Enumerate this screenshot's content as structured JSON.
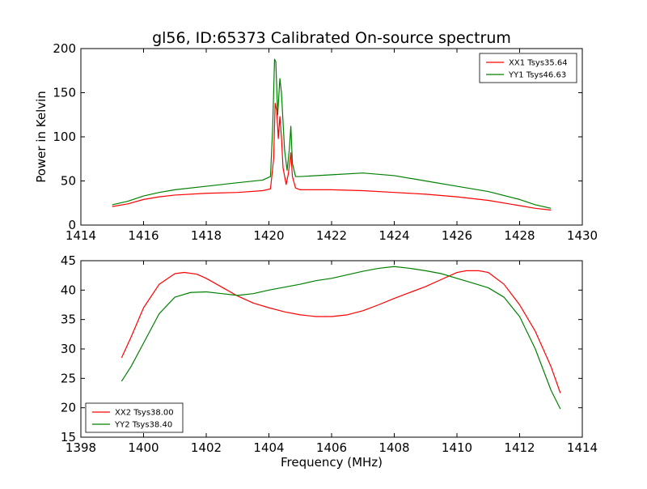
{
  "chart_data": [
    {
      "type": "line",
      "title": "gl56, ID:65373 Calibrated On-source spectrum",
      "xlabel": "",
      "ylabel": "Power in Kelvin",
      "xlim": [
        1414,
        1430
      ],
      "ylim": [
        0,
        200
      ],
      "x_ticks": [
        "1414",
        "1416",
        "1418",
        "1420",
        "1422",
        "1424",
        "1426",
        "1428",
        "1430"
      ],
      "y_ticks": [
        "0",
        "50",
        "100",
        "150",
        "200"
      ],
      "legend_position": "top-right",
      "series": [
        {
          "name": "XX1 Tsys35.64",
          "color": "#ff0000",
          "points": [
            [
              1415.0,
              21
            ],
            [
              1415.5,
              24
            ],
            [
              1416.0,
              29
            ],
            [
              1416.5,
              32
            ],
            [
              1417.0,
              34
            ],
            [
              1418.0,
              36
            ],
            [
              1419.0,
              37
            ],
            [
              1419.8,
              39
            ],
            [
              1420.05,
              41
            ],
            [
              1420.15,
              75
            ],
            [
              1420.2,
              138
            ],
            [
              1420.25,
              130
            ],
            [
              1420.3,
              98
            ],
            [
              1420.35,
              123
            ],
            [
              1420.4,
              100
            ],
            [
              1420.45,
              65
            ],
            [
              1420.55,
              46
            ],
            [
              1420.62,
              58
            ],
            [
              1420.7,
              82
            ],
            [
              1420.75,
              55
            ],
            [
              1420.85,
              42
            ],
            [
              1421.0,
              40
            ],
            [
              1422.0,
              40
            ],
            [
              1423.0,
              39
            ],
            [
              1424.0,
              37
            ],
            [
              1425.0,
              35
            ],
            [
              1426.0,
              32
            ],
            [
              1427.0,
              28
            ],
            [
              1428.0,
              22
            ],
            [
              1428.5,
              19
            ],
            [
              1429.0,
              17
            ]
          ]
        },
        {
          "name": "YY1 Tsys46.63",
          "color": "#008000",
          "points": [
            [
              1415.0,
              23
            ],
            [
              1415.5,
              27
            ],
            [
              1416.0,
              33
            ],
            [
              1416.5,
              37
            ],
            [
              1417.0,
              40
            ],
            [
              1418.0,
              44
            ],
            [
              1419.0,
              48
            ],
            [
              1419.8,
              51
            ],
            [
              1420.05,
              55
            ],
            [
              1420.12,
              110
            ],
            [
              1420.18,
              188
            ],
            [
              1420.22,
              185
            ],
            [
              1420.28,
              125
            ],
            [
              1420.35,
              166
            ],
            [
              1420.4,
              150
            ],
            [
              1420.5,
              85
            ],
            [
              1420.58,
              62
            ],
            [
              1420.65,
              85
            ],
            [
              1420.7,
              112
            ],
            [
              1420.75,
              70
            ],
            [
              1420.85,
              55
            ],
            [
              1421.0,
              55
            ],
            [
              1422.0,
              57
            ],
            [
              1423.0,
              59
            ],
            [
              1424.0,
              56
            ],
            [
              1425.0,
              50
            ],
            [
              1426.0,
              44
            ],
            [
              1427.0,
              38
            ],
            [
              1428.0,
              29
            ],
            [
              1428.5,
              23
            ],
            [
              1429.0,
              19
            ]
          ]
        }
      ]
    },
    {
      "type": "line",
      "title": "",
      "xlabel": "Frequency (MHz)",
      "ylabel": "",
      "xlim": [
        1398,
        1414
      ],
      "ylim": [
        15,
        45
      ],
      "x_ticks": [
        "1398",
        "1400",
        "1402",
        "1404",
        "1406",
        "1408",
        "1410",
        "1412",
        "1414"
      ],
      "y_ticks": [
        "15",
        "20",
        "25",
        "30",
        "35",
        "40",
        "45"
      ],
      "legend_position": "bottom-left",
      "series": [
        {
          "name": "XX2 Tsys38.00",
          "color": "#ff0000",
          "points": [
            [
              1399.3,
              28.5
            ],
            [
              1399.6,
              32
            ],
            [
              1400.0,
              37
            ],
            [
              1400.5,
              41
            ],
            [
              1401.0,
              42.8
            ],
            [
              1401.3,
              43
            ],
            [
              1401.7,
              42.7
            ],
            [
              1402.0,
              42
            ],
            [
              1402.5,
              40.5
            ],
            [
              1403.0,
              39
            ],
            [
              1403.5,
              37.8
            ],
            [
              1404.0,
              37
            ],
            [
              1404.5,
              36.3
            ],
            [
              1405.0,
              35.8
            ],
            [
              1405.5,
              35.5
            ],
            [
              1406.0,
              35.5
            ],
            [
              1406.5,
              35.8
            ],
            [
              1407.0,
              36.5
            ],
            [
              1407.5,
              37.5
            ],
            [
              1408.0,
              38.6
            ],
            [
              1408.5,
              39.6
            ],
            [
              1409.0,
              40.6
            ],
            [
              1409.5,
              41.8
            ],
            [
              1410.0,
              43
            ],
            [
              1410.3,
              43.3
            ],
            [
              1410.7,
              43.3
            ],
            [
              1411.0,
              43
            ],
            [
              1411.5,
              41
            ],
            [
              1412.0,
              37.5
            ],
            [
              1412.5,
              33
            ],
            [
              1413.0,
              27
            ],
            [
              1413.3,
              22.5
            ]
          ]
        },
        {
          "name": "YY2 Tsys38.40",
          "color": "#008000",
          "points": [
            [
              1399.3,
              24.5
            ],
            [
              1399.6,
              27
            ],
            [
              1400.0,
              31
            ],
            [
              1400.5,
              36
            ],
            [
              1401.0,
              38.8
            ],
            [
              1401.5,
              39.6
            ],
            [
              1402.0,
              39.7
            ],
            [
              1402.5,
              39.4
            ],
            [
              1403.0,
              39.1
            ],
            [
              1403.5,
              39.4
            ],
            [
              1404.0,
              40
            ],
            [
              1404.5,
              40.5
            ],
            [
              1405.0,
              41
            ],
            [
              1405.5,
              41.6
            ],
            [
              1406.0,
              42
            ],
            [
              1406.5,
              42.6
            ],
            [
              1407.0,
              43.2
            ],
            [
              1407.5,
              43.7
            ],
            [
              1408.0,
              44
            ],
            [
              1408.5,
              43.7
            ],
            [
              1409.0,
              43.3
            ],
            [
              1409.5,
              42.8
            ],
            [
              1410.0,
              42
            ],
            [
              1410.5,
              41.2
            ],
            [
              1411.0,
              40.4
            ],
            [
              1411.5,
              38.8
            ],
            [
              1412.0,
              35.5
            ],
            [
              1412.5,
              30
            ],
            [
              1413.0,
              23
            ],
            [
              1413.3,
              19.8
            ]
          ]
        }
      ]
    }
  ]
}
